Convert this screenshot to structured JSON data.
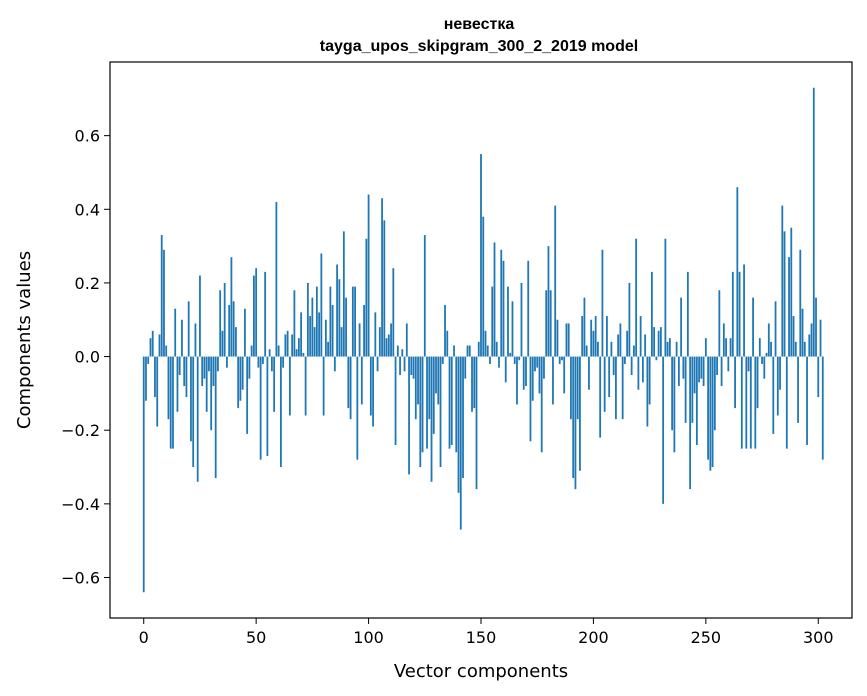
{
  "chart_data": {
    "type": "bar",
    "title_line1": "невестка",
    "title_line2": "tayga_upos_skipgram_300_2_2019 model",
    "xlabel": "Vector components",
    "ylabel": "Components values",
    "xlim": [
      -15,
      315
    ],
    "ylim": [
      -0.71,
      0.8
    ],
    "x_ticks": [
      0,
      50,
      100,
      150,
      200,
      250,
      300
    ],
    "x_tick_labels": [
      "0",
      "50",
      "100",
      "150",
      "200",
      "250",
      "300"
    ],
    "y_ticks": [
      -0.6,
      -0.4,
      -0.2,
      0.0,
      0.2,
      0.4,
      0.6
    ],
    "y_tick_labels": [
      "−0.6",
      "−0.4",
      "−0.2",
      "0.0",
      "0.2",
      "0.4",
      "0.6"
    ],
    "grid": false,
    "bar_color": "#1f77b4",
    "values": [
      -0.64,
      -0.12,
      -0.02,
      0.05,
      0.07,
      -0.11,
      -0.19,
      0.06,
      0.33,
      0.29,
      0.03,
      -0.17,
      -0.25,
      -0.25,
      0.13,
      -0.15,
      -0.05,
      0.1,
      -0.08,
      -0.11,
      0.15,
      -0.23,
      -0.3,
      0.09,
      -0.34,
      0.22,
      -0.08,
      -0.06,
      -0.15,
      -0.04,
      -0.2,
      -0.08,
      -0.33,
      -0.04,
      0.18,
      0.07,
      0.2,
      -0.03,
      0.14,
      0.27,
      0.15,
      0.08,
      -0.14,
      -0.12,
      -0.09,
      0.13,
      -0.21,
      -0.06,
      0.03,
      0.22,
      0.24,
      -0.03,
      -0.28,
      -0.02,
      0.23,
      -0.27,
      0.02,
      -0.04,
      -0.15,
      0.42,
      0.03,
      -0.3,
      -0.03,
      0.06,
      0.07,
      -0.16,
      0.06,
      0.18,
      0.02,
      0.05,
      0.12,
      0.01,
      -0.16,
      0.2,
      0.11,
      0.16,
      0.08,
      0.19,
      0.12,
      0.28,
      -0.16,
      0.1,
      0.04,
      0.19,
      0.14,
      -0.04,
      0.25,
      0.21,
      0.08,
      0.34,
      0.16,
      -0.14,
      -0.17,
      0.19,
      0.19,
      -0.28,
      0.09,
      -0.13,
      0.14,
      0.32,
      0.44,
      -0.16,
      -0.19,
      0.12,
      -0.04,
      0.08,
      0.43,
      0.37,
      0.05,
      0.06,
      0.09,
      0.24,
      -0.24,
      0.03,
      -0.05,
      0.02,
      -0.04,
      0.09,
      -0.32,
      -0.05,
      -0.06,
      -0.17,
      -0.13,
      -0.3,
      -0.26,
      0.33,
      -0.25,
      -0.17,
      -0.34,
      -0.21,
      -0.1,
      -0.13,
      -0.3,
      -0.02,
      0.14,
      0.07,
      -0.25,
      -0.24,
      0.03,
      -0.26,
      -0.37,
      -0.47,
      -0.33,
      -0.06,
      0.03,
      0.03,
      -0.15,
      -0.14,
      -0.36,
      0.04,
      0.55,
      0.38,
      0.07,
      0.03,
      -0.02,
      0.19,
      0.31,
      0.04,
      -0.03,
      0.29,
      0.26,
      -0.07,
      0.19,
      0.01,
      0.15,
      -0.02,
      -0.13,
      -0.01,
      0.2,
      -0.09,
      -0.08,
      0.26,
      -0.23,
      -0.12,
      -0.04,
      -0.03,
      -0.1,
      -0.26,
      -0.06,
      0.18,
      0.3,
      0.18,
      -0.13,
      0.41,
      0.1,
      -0.02,
      -0.01,
      -0.1,
      0.09,
      0.09,
      -0.17,
      -0.33,
      -0.36,
      -0.17,
      -0.31,
      0.11,
      0.16,
      0.03,
      -0.09,
      0.1,
      0.07,
      0.11,
      0.04,
      -0.22,
      0.29,
      -0.15,
      0.11,
      -0.11,
      0.04,
      -0.05,
      -0.17,
      0.06,
      0.09,
      -0.17,
      -0.02,
      0.07,
      0.2,
      -0.05,
      0.03,
      0.32,
      -0.09,
      0.11,
      -0.07,
      0.06,
      -0.19,
      -0.13,
      0.23,
      0.08,
      -0.01,
      0.07,
      0.08,
      -0.4,
      0.32,
      0.04,
      0.05,
      -0.2,
      -0.26,
      0.04,
      -0.08,
      0.16,
      -0.06,
      -0.18,
      0.23,
      -0.36,
      -0.18,
      -0.1,
      -0.24,
      -0.07,
      -0.06,
      -0.08,
      0.05,
      -0.28,
      -0.31,
      -0.3,
      -0.2,
      -0.05,
      0.18,
      -0.08,
      0.09,
      0.05,
      -0.04,
      0.05,
      0.23,
      -0.14,
      0.46,
      0.23,
      -0.25,
      0.25,
      -0.25,
      -0.04,
      -0.25,
      0.16,
      -0.25,
      -0.14,
      0.05,
      -0.02,
      -0.06,
      0.01,
      0.09,
      0.04,
      -0.21,
      0.15,
      -0.16,
      -0.09,
      0.41,
      0.34,
      -0.25,
      0.27,
      0.35,
      0.11,
      0.04,
      -0.18,
      0.29,
      0.13,
      0.04,
      -0.24,
      0.06,
      0.09,
      0.73,
      0.16,
      -0.11,
      0.1,
      -0.28
    ]
  }
}
